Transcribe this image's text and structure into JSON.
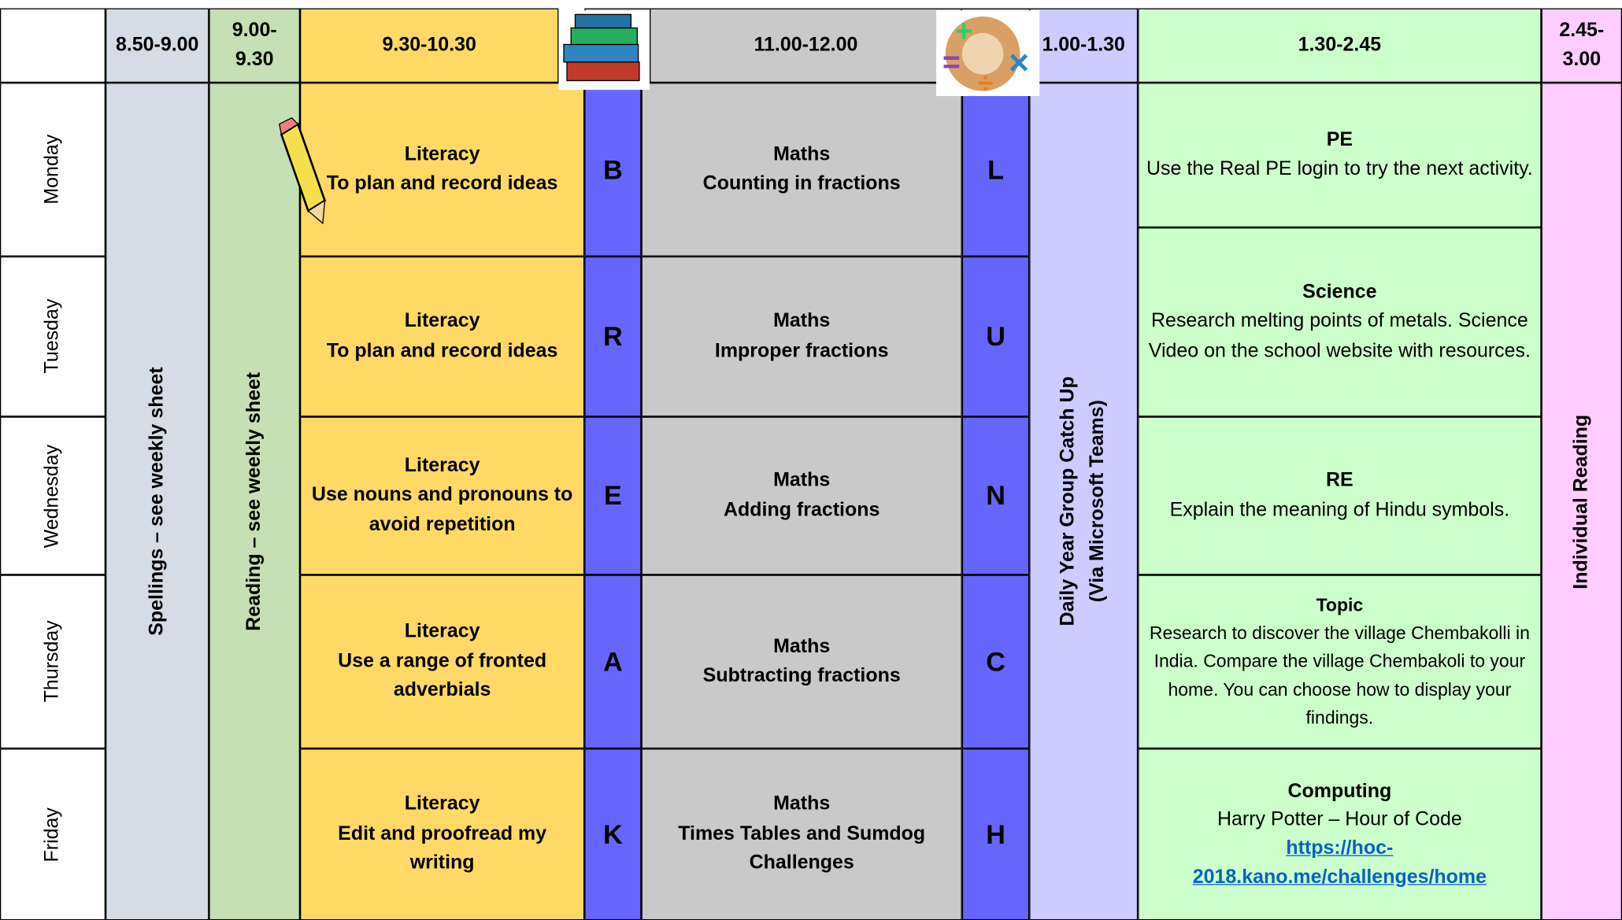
{
  "header": {
    "times": [
      "8.50-9.00",
      "9.00-9.30",
      "9.30-10.30",
      "11.00-12.00",
      "1.00-1.30",
      "1.30-2.45",
      "2.45-3.00"
    ]
  },
  "days": [
    "Monday",
    "Tuesday",
    "Wednesday",
    "Thursday",
    "Friday"
  ],
  "spellings": "Spellings – see weekly sheet",
  "reading": "Reading – see weekly sheet",
  "catch_up": [
    "Daily Year Group Catch Up",
    "(Via Microsoft Teams)"
  ],
  "individual_reading": "Individual Reading",
  "rows": [
    {
      "literacy": [
        "Literacy",
        "To plan and record ideas"
      ],
      "break_letter": "B",
      "maths": [
        "Maths",
        "Counting in fractions"
      ],
      "lunch_letter": "L"
    },
    {
      "literacy": [
        "Literacy",
        "To plan and record ideas"
      ],
      "break_letter": "R",
      "maths": [
        "Maths",
        "Improper fractions"
      ],
      "lunch_letter": "U"
    },
    {
      "literacy": [
        "Literacy",
        "Use nouns and pronouns to avoid repetition"
      ],
      "break_letter": "E",
      "maths": [
        "Maths",
        "Adding fractions"
      ],
      "lunch_letter": "N"
    },
    {
      "literacy": [
        "Literacy",
        "Use a range of fronted adverbials"
      ],
      "break_letter": "A",
      "maths": [
        "Maths",
        "Subtracting fractions"
      ],
      "lunch_letter": "C"
    },
    {
      "literacy": [
        "Literacy",
        "Edit and proofread my writing"
      ],
      "break_letter": "K",
      "maths": [
        "Maths",
        "Times Tables and Sumdog Challenges"
      ],
      "lunch_letter": "H"
    }
  ],
  "afternoon": [
    {
      "subject": "PE",
      "text": "Use the Real PE login to try the next activity."
    },
    {
      "subject": "Science",
      "text": "Research melting points of metals. Science Video on the school website with resources."
    },
    {
      "subject": "RE",
      "text": "Explain the meaning of Hindu symbols."
    },
    {
      "subject": "Topic",
      "text": "Research to discover the village Chembakolli in India. Compare the village Chembakoli to your home. You can choose how to display your findings."
    },
    {
      "subject": "Computing",
      "text": "Harry Potter – Hour of Code",
      "link": "https://hoc-2018.kano.me/challenges/home"
    }
  ]
}
